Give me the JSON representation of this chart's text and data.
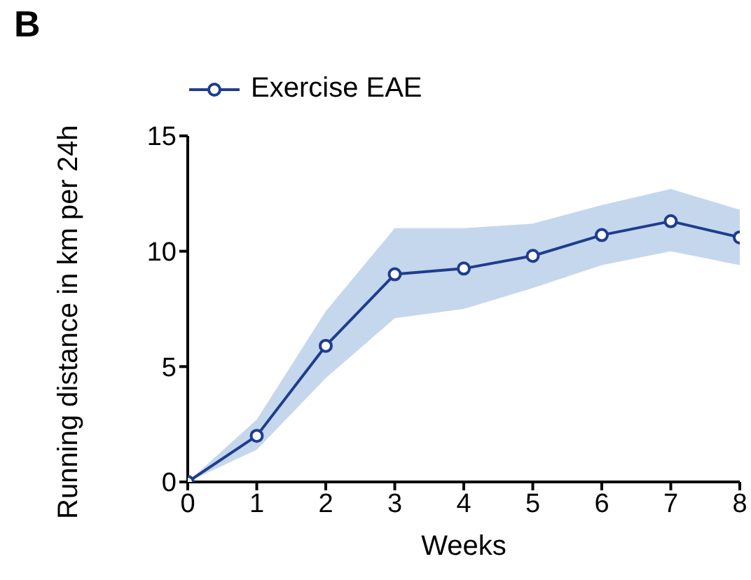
{
  "chart_data": {
    "type": "line",
    "title": "B",
    "xlabel": "Weeks",
    "ylabel": "Running distance in km per 24h",
    "x": [
      0,
      1,
      2,
      3,
      4,
      5,
      6,
      7,
      8
    ],
    "series": [
      {
        "name": "Exercise EAE",
        "color": "#1f3d8f",
        "values": [
          0,
          2.0,
          5.9,
          9.0,
          9.25,
          9.8,
          10.7,
          11.3,
          10.6
        ],
        "lower": [
          0,
          1.4,
          4.5,
          7.1,
          7.5,
          8.4,
          9.4,
          10.0,
          9.4
        ],
        "upper": [
          0,
          2.7,
          7.4,
          11.0,
          11.0,
          11.2,
          12.0,
          12.7,
          11.8
        ]
      }
    ],
    "xlim": [
      0,
      8
    ],
    "xticks": [
      0,
      1,
      2,
      3,
      4,
      5,
      6,
      7,
      8
    ],
    "ylim": [
      0,
      15
    ],
    "yticks": [
      0,
      5,
      10,
      15
    ],
    "grid": false,
    "legend": "top left",
    "marker": "circle",
    "line_style": "solid"
  }
}
